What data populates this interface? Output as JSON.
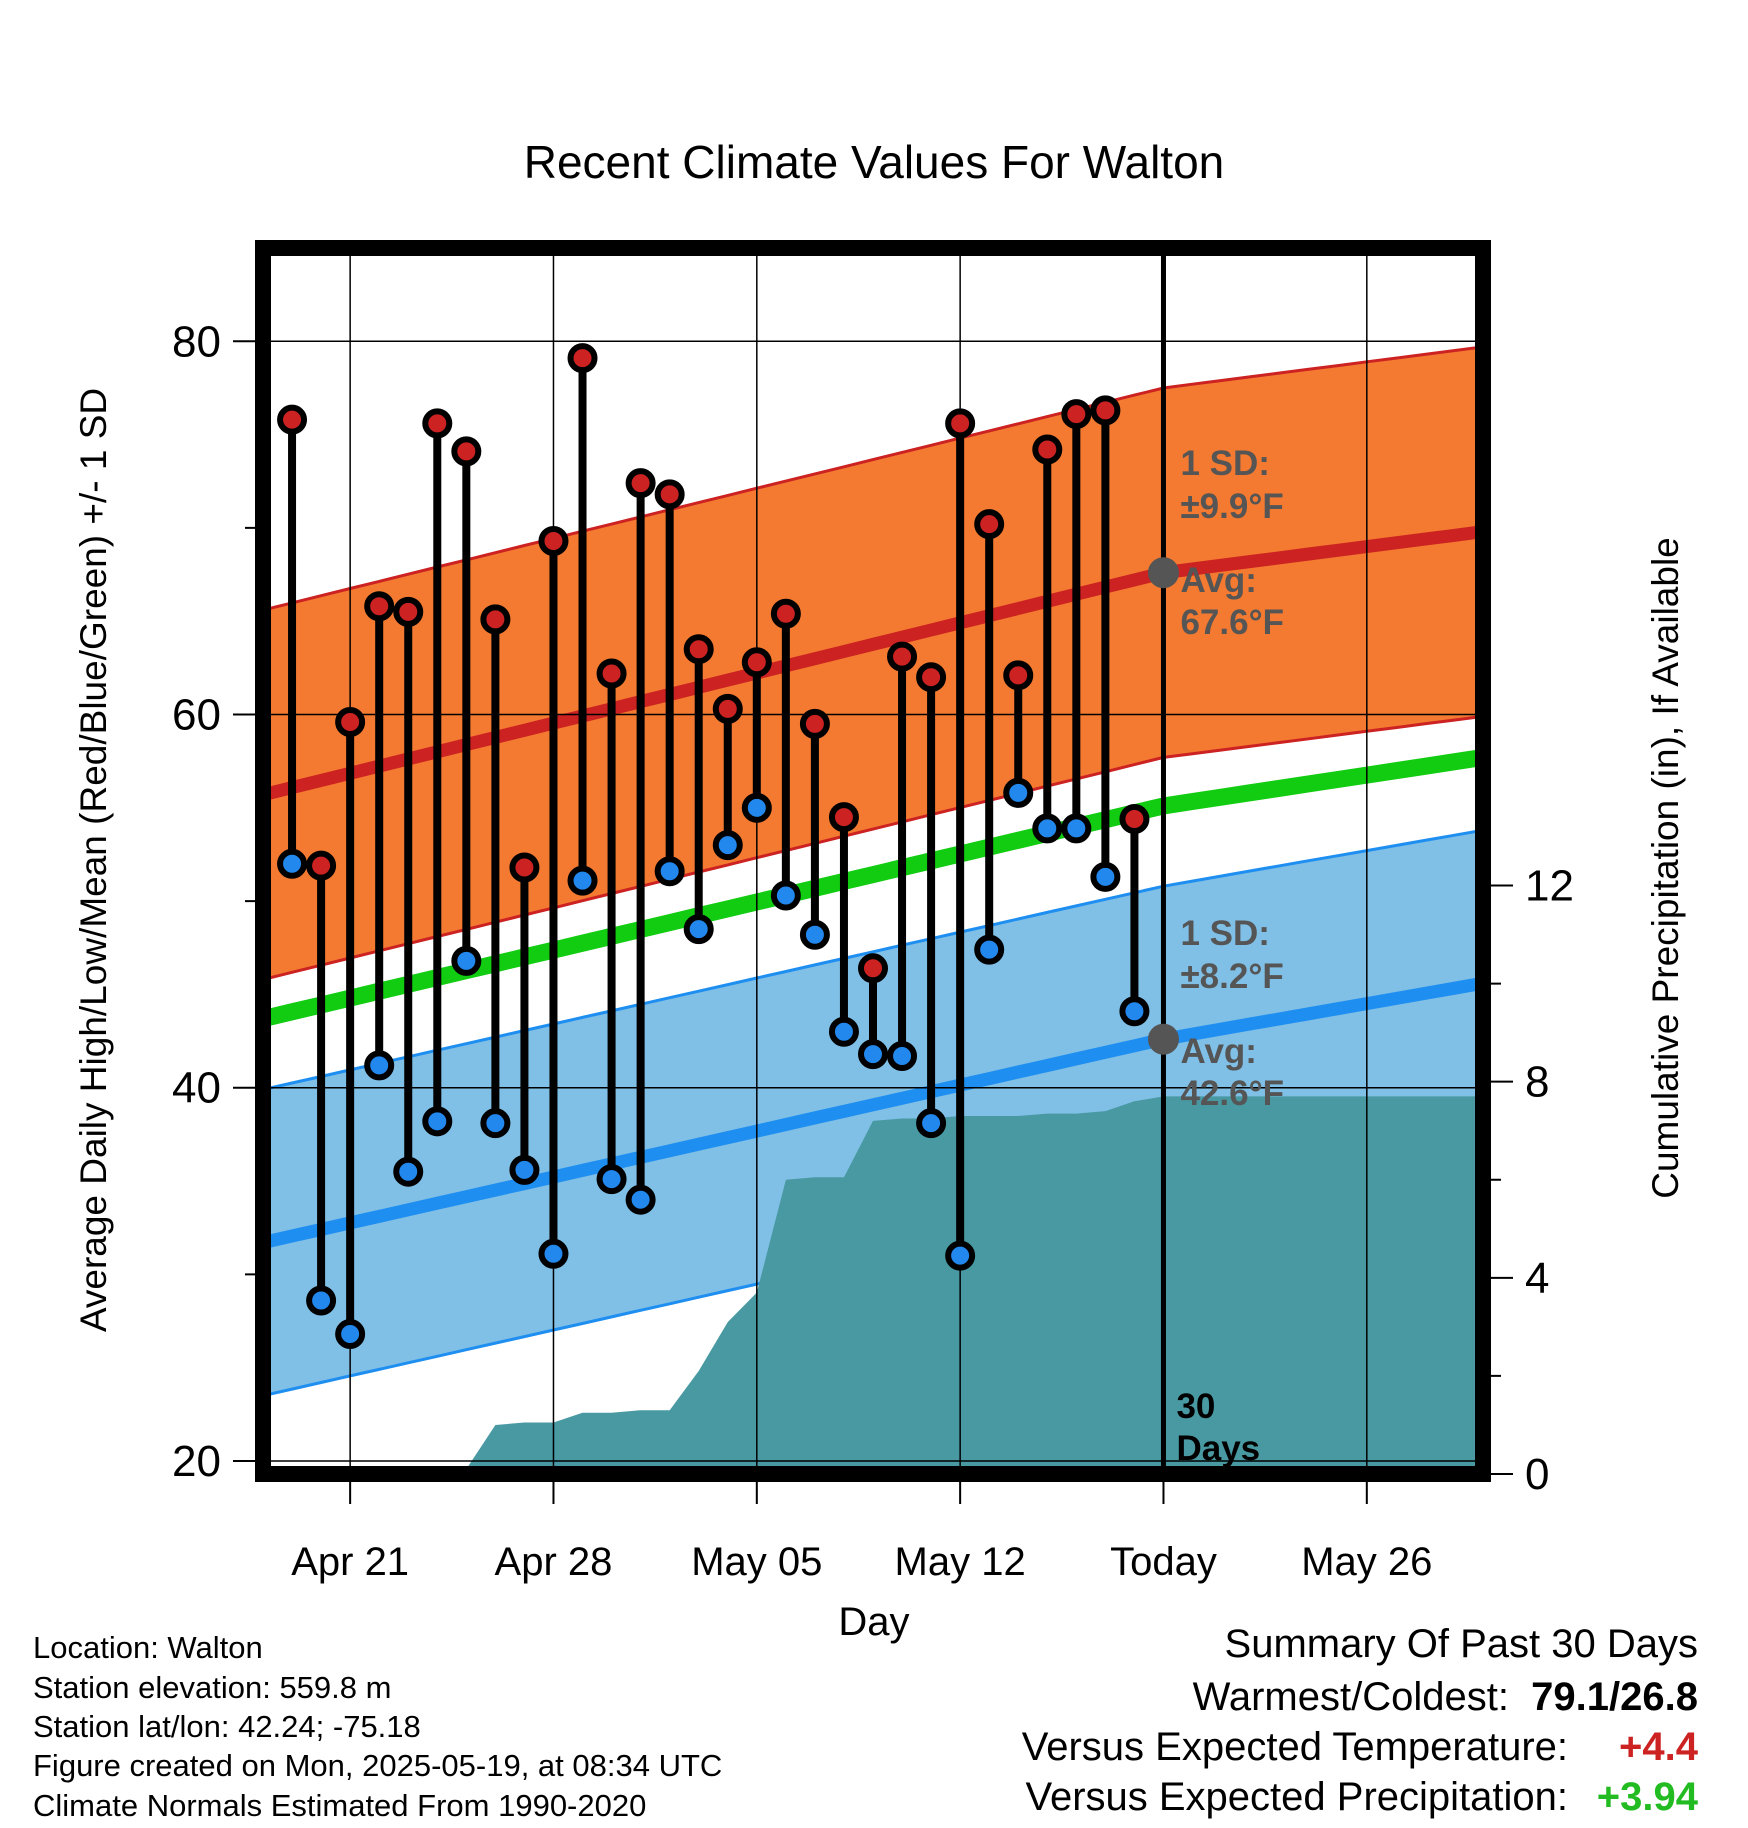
{
  "chart_data": {
    "type": "line",
    "title": "Recent Climate Values For Walton",
    "xlabel": "Day",
    "ylabel": "Average Daily High/Low/Mean (Red/Blue/Green) +/- 1 SD",
    "y2label": "Cumulative Precipitation (in), If Available",
    "ylim": [
      19.3,
      85
    ],
    "y2lim": [
      0,
      25
    ],
    "xlim": [
      "2025-04-18",
      "2025-05-30"
    ],
    "yticks": [
      20,
      40,
      60,
      80
    ],
    "y2ticks": [
      0,
      4,
      8,
      12
    ],
    "xticks": [
      {
        "date": "2025-04-21",
        "label": "Apr 21"
      },
      {
        "date": "2025-04-28",
        "label": "Apr 28"
      },
      {
        "date": "2025-05-05",
        "label": "May 05"
      },
      {
        "date": "2025-05-12",
        "label": "May 12"
      },
      {
        "date": "2025-05-19",
        "label": "Today"
      },
      {
        "date": "2025-05-26",
        "label": "May 26"
      }
    ],
    "grid": true,
    "today": "2025-05-19",
    "today_label": [
      "30",
      "Days"
    ],
    "normals": {
      "x": [
        "2025-04-18",
        "2025-05-19",
        "2025-05-30"
      ],
      "high_avg": [
        55.7,
        67.6,
        69.8
      ],
      "high_sd": 9.9,
      "low_avg": [
        31.7,
        42.6,
        45.6
      ],
      "low_sd": 8.2,
      "mean_avg": [
        43.7,
        55.1,
        57.7
      ]
    },
    "series": [
      {
        "name": "High",
        "color": "#cc2222",
        "x": [
          "2025-04-19",
          "2025-04-20",
          "2025-04-21",
          "2025-04-22",
          "2025-04-23",
          "2025-04-24",
          "2025-04-25",
          "2025-04-26",
          "2025-04-27",
          "2025-04-28",
          "2025-04-29",
          "2025-04-30",
          "2025-05-01",
          "2025-05-02",
          "2025-05-03",
          "2025-05-04",
          "2025-05-05",
          "2025-05-06",
          "2025-05-07",
          "2025-05-08",
          "2025-05-09",
          "2025-05-10",
          "2025-05-11",
          "2025-05-12",
          "2025-05-13",
          "2025-05-14",
          "2025-05-15",
          "2025-05-16",
          "2025-05-17",
          "2025-05-18"
        ],
        "values": [
          75.8,
          51.9,
          59.6,
          65.8,
          65.5,
          75.6,
          74.1,
          65.1,
          51.8,
          69.3,
          79.1,
          62.2,
          72.4,
          71.8,
          63.5,
          60.3,
          62.8,
          65.4,
          59.5,
          54.5,
          46.4,
          63.1,
          62.0,
          75.6,
          70.2,
          62.1,
          74.2,
          76.1,
          76.3,
          54.4
        ]
      },
      {
        "name": "Low",
        "color": "#2288ee",
        "x": [
          "2025-04-19",
          "2025-04-20",
          "2025-04-21",
          "2025-04-22",
          "2025-04-23",
          "2025-04-24",
          "2025-04-25",
          "2025-04-26",
          "2025-04-27",
          "2025-04-28",
          "2025-04-29",
          "2025-04-30",
          "2025-05-01",
          "2025-05-02",
          "2025-05-03",
          "2025-05-04",
          "2025-05-05",
          "2025-05-06",
          "2025-05-07",
          "2025-05-08",
          "2025-05-09",
          "2025-05-10",
          "2025-05-11",
          "2025-05-12",
          "2025-05-13",
          "2025-05-14",
          "2025-05-15",
          "2025-05-16",
          "2025-05-17",
          "2025-05-18"
        ],
        "values": [
          52.0,
          28.6,
          26.8,
          41.2,
          35.5,
          38.2,
          46.8,
          38.1,
          35.6,
          31.1,
          51.1,
          35.1,
          34.0,
          51.6,
          48.5,
          53.0,
          55.0,
          50.3,
          48.2,
          43.0,
          41.8,
          41.7,
          38.1,
          31.0,
          47.4,
          55.8,
          53.9,
          53.9,
          51.3,
          44.1
        ]
      }
    ],
    "precipitation": {
      "name": "Cumulative Precipitation",
      "color": "#4899a2",
      "x": [
        "2025-04-18",
        "2025-04-24",
        "2025-04-25",
        "2025-04-26",
        "2025-04-27",
        "2025-04-28",
        "2025-04-29",
        "2025-04-30",
        "2025-05-01",
        "2025-05-02",
        "2025-05-03",
        "2025-05-04",
        "2025-05-05",
        "2025-05-06",
        "2025-05-07",
        "2025-05-08",
        "2025-05-09",
        "2025-05-10",
        "2025-05-11",
        "2025-05-12",
        "2025-05-13",
        "2025-05-14",
        "2025-05-15",
        "2025-05-16",
        "2025-05-17",
        "2025-05-18",
        "2025-05-19",
        "2025-05-30"
      ],
      "values": [
        0.0,
        0.0,
        0.1,
        1.0,
        1.05,
        1.05,
        1.25,
        1.25,
        1.3,
        1.3,
        2.1,
        3.1,
        3.7,
        6.0,
        6.05,
        6.05,
        7.2,
        7.25,
        7.25,
        7.3,
        7.3,
        7.3,
        7.35,
        7.35,
        7.4,
        7.6,
        7.7,
        7.7
      ]
    },
    "annotations": {
      "high_sd_label": [
        "1 SD:",
        "±9.9°F"
      ],
      "high_avg_label": [
        "Avg:",
        "67.6°F"
      ],
      "low_sd_label": [
        "1 SD:",
        "±8.2°F"
      ],
      "low_avg_label": [
        "Avg:",
        "42.6°F"
      ]
    }
  },
  "footer": {
    "location": "Location: Walton",
    "elevation": "Station elevation: 559.8 m",
    "latlon": "Station lat/lon: 42.24; -75.18",
    "created": "Figure created on Mon, 2025-05-19, at 08:34 UTC",
    "normals": "Climate Normals Estimated From 1990-2020"
  },
  "summary": {
    "title": "Summary Of Past 30 Days",
    "extremes_label": "Warmest/Coldest:",
    "extremes_value": "79.1/26.8",
    "temp_label": "Versus Expected Temperature:",
    "temp_value": "+4.4",
    "temp_color": "#cc2222",
    "precip_label": "Versus Expected Precipitation:",
    "precip_value": "+3.94",
    "precip_color": "#22bb22"
  }
}
